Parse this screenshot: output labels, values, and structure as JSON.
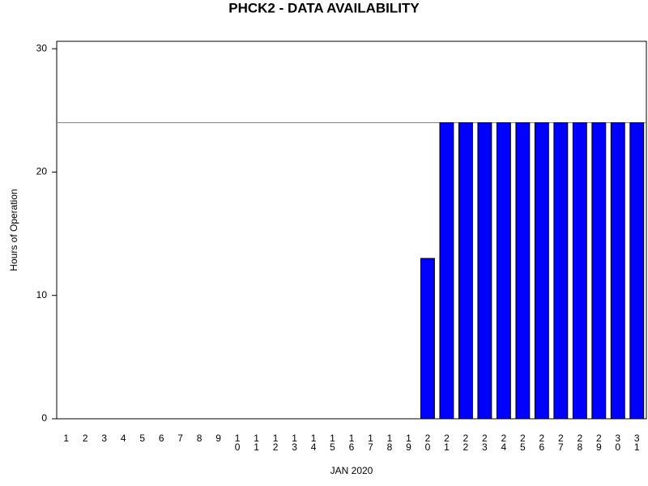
{
  "chart_data": {
    "type": "bar",
    "title": "PHCK2 - DATA AVAILABILITY",
    "x_label": "JAN 2020",
    "y_label": "Hours of Operation",
    "categories": [
      "1",
      "2",
      "3",
      "4",
      "5",
      "6",
      "7",
      "8",
      "9",
      "10",
      "11",
      "12",
      "13",
      "14",
      "15",
      "16",
      "17",
      "18",
      "19",
      "20",
      "21",
      "22",
      "23",
      "24",
      "25",
      "26",
      "27",
      "28",
      "29",
      "30",
      "31"
    ],
    "values": [
      0,
      0,
      0,
      0,
      0,
      0,
      0,
      0,
      0,
      0,
      0,
      0,
      0,
      0,
      0,
      0,
      0,
      0,
      0,
      13,
      24,
      24,
      24,
      24,
      24,
      24,
      24,
      24,
      24,
      24,
      24
    ],
    "color": "#0000ff",
    "reference_line": 24,
    "ylim": [
      0,
      30.6
    ],
    "yticks": [
      0,
      10,
      20,
      30
    ]
  }
}
